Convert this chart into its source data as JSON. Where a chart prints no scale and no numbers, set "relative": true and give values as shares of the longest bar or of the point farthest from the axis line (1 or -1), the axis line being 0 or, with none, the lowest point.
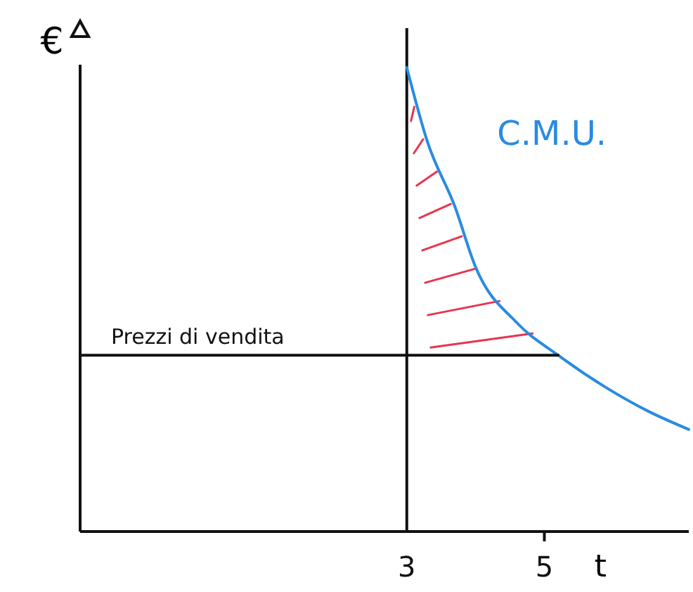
{
  "chart_data": {
    "type": "line",
    "xlabel": "t",
    "ylabel": "€",
    "relative": true,
    "xlim": [
      -1.75,
      7.1
    ],
    "xticks": [
      3,
      5
    ],
    "grid": false,
    "legend": false,
    "marker": "none",
    "line_style": "solid",
    "series": [
      {
        "name": "C.M.U.",
        "color": "#2a8be0",
        "x": [
          3,
          3.3,
          3.7,
          4.0,
          4.6,
          5.2,
          5.9,
          6.5,
          7.1
        ],
        "values": [
          1,
          0.84,
          0.7,
          0.57,
          0.45,
          0.38,
          0.31,
          0.26,
          0.22
        ]
      },
      {
        "name": "Prezzi di vendita",
        "color": "#111111",
        "x": [
          -1.75,
          5.2
        ],
        "values": [
          0.38,
          0.38
        ]
      }
    ],
    "ref_lines": [
      {
        "axis": "x",
        "value": 3,
        "color": "#111111"
      }
    ]
  }
}
